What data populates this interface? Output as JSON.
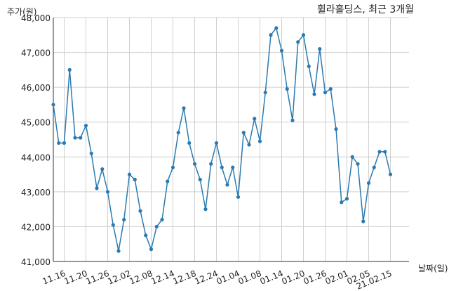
{
  "chart_data": {
    "type": "line",
    "title": "휠라홀딩스, 최근 3개월",
    "ylabel": "주가(원)",
    "xlabel": "날짜(일)",
    "ylim": [
      41000,
      48000
    ],
    "grid": true,
    "y_ticks": [
      41000,
      42000,
      43000,
      44000,
      45000,
      46000,
      47000,
      48000
    ],
    "y_tick_labels": [
      "41,000",
      "42,000",
      "43,000",
      "44,000",
      "45,000",
      "46,000",
      "47,000",
      "48,000"
    ],
    "x_tick_labels": [
      "11.16",
      "11.20",
      "11.26",
      "12.02",
      "12.08",
      "12.14",
      "12.18",
      "12.24",
      "01.04",
      "01.08",
      "01.14",
      "01.20",
      "01.26",
      "02.01",
      "02.05",
      "21.02.15"
    ],
    "x_tick_indices": [
      2,
      6,
      10,
      14,
      18,
      22,
      26,
      30,
      34,
      38,
      42,
      46,
      50,
      54,
      58,
      62
    ],
    "line_color": "#2a7ab0",
    "series": [
      {
        "values": [
          45500,
          44400,
          44400,
          46500,
          44550,
          44550,
          44900,
          44100,
          43100,
          43650,
          43000,
          42050,
          41300,
          42200,
          43500,
          43350,
          42450,
          41750,
          41350,
          42000,
          42200,
          43300,
          43700,
          44700,
          45400,
          44400,
          43800,
          43350,
          42500,
          43800,
          44400,
          43700,
          43200,
          43700,
          42850,
          44700,
          44350,
          45100,
          44450,
          45850,
          47500,
          47700,
          47050,
          45950,
          45050,
          47300,
          47500,
          46600,
          45800,
          47100,
          45850,
          45950,
          44800,
          42700,
          42800,
          44000,
          43800,
          42150,
          43250,
          43700,
          44150,
          44150,
          43500
        ]
      }
    ]
  }
}
